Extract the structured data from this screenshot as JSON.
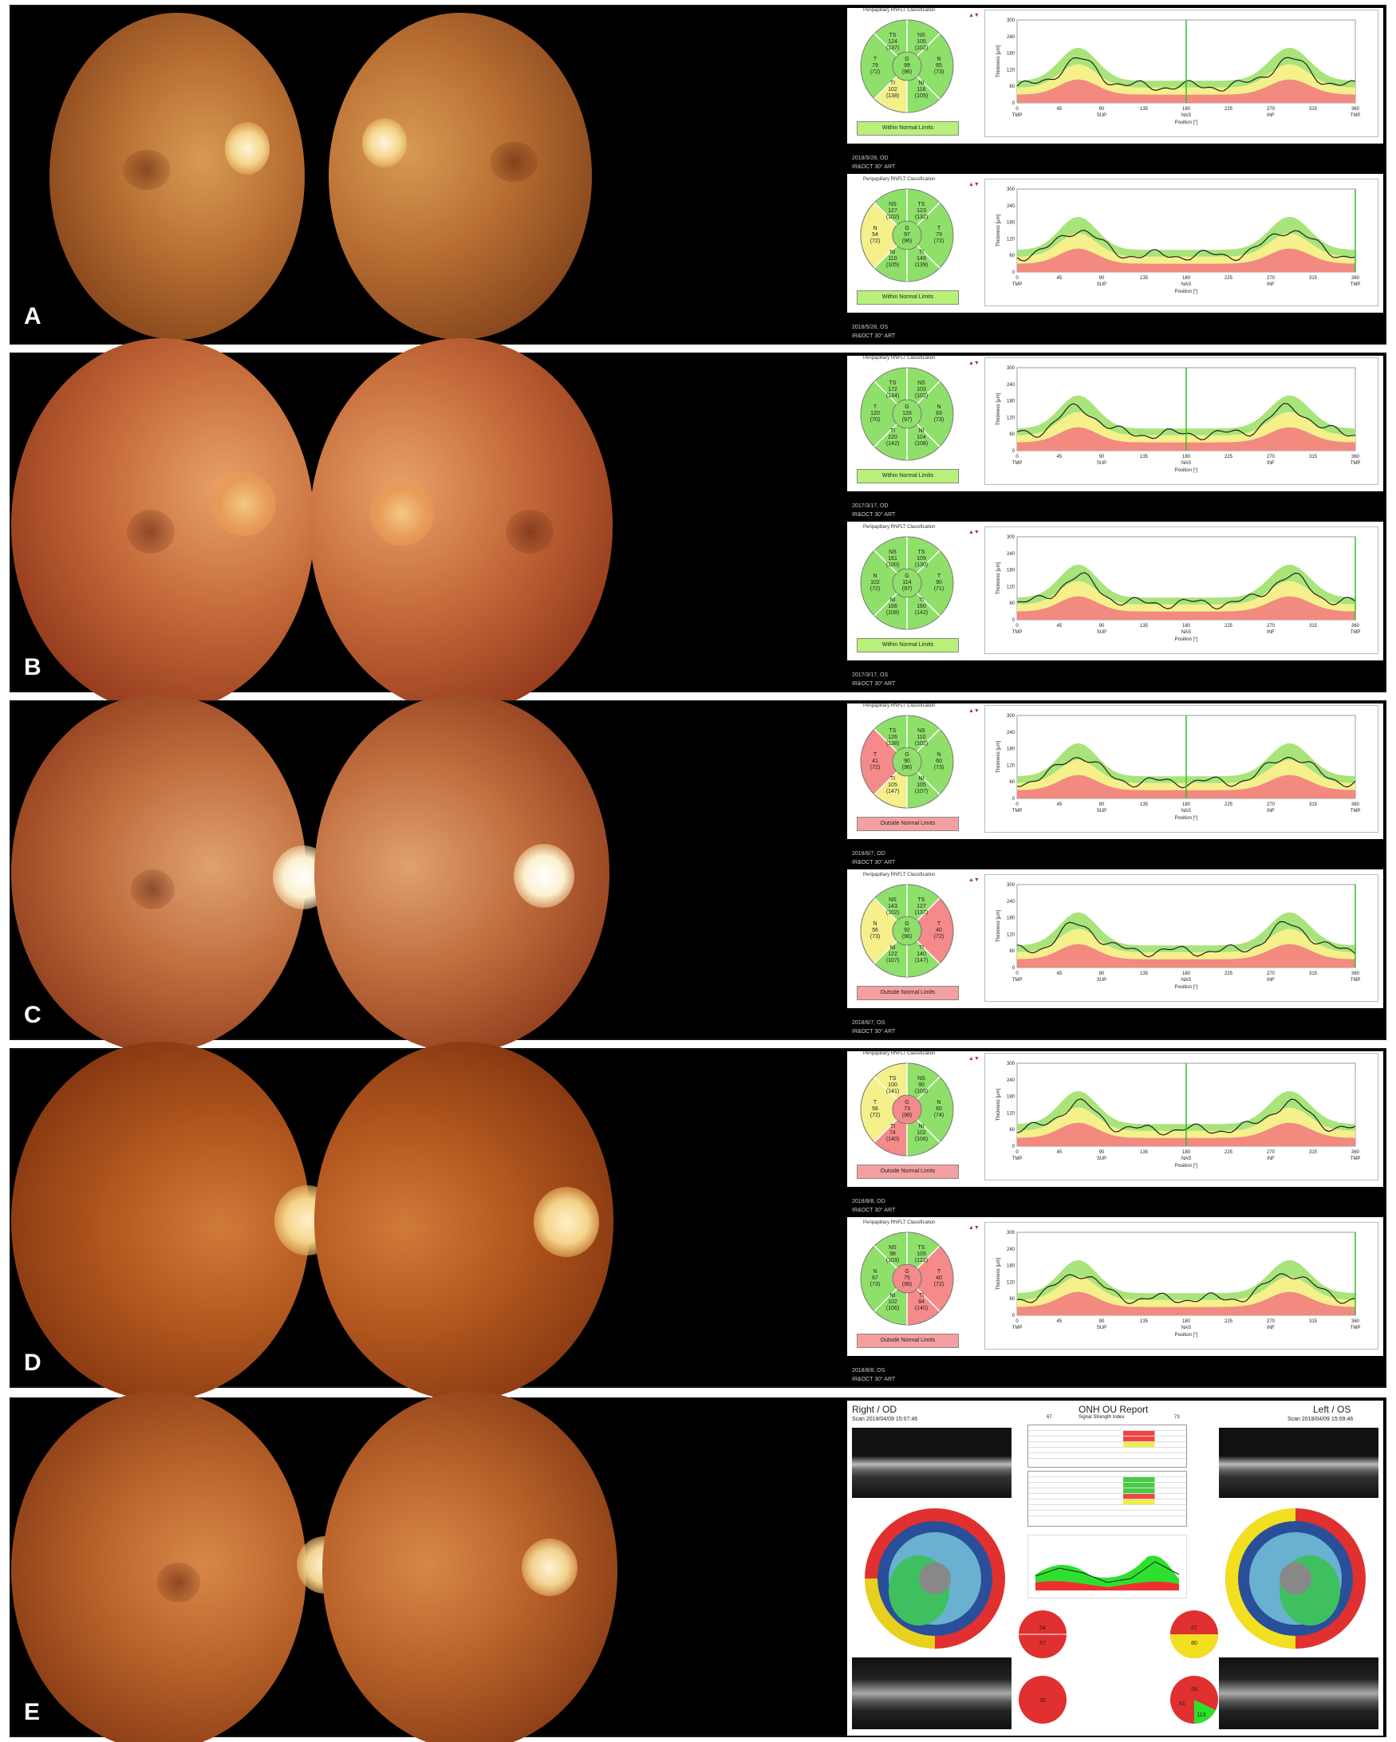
{
  "panels": [
    {
      "label": "A",
      "od": {
        "classification_title": "Peripapillary RNFLT Classification",
        "status": "Within Normal Limits",
        "status_color": "#b8f07a",
        "date_line": "2018/5/28, OD",
        "device_line": "IR&OCT 30° ART",
        "sectors": [
          {
            "name": "TS",
            "value": "124",
            "normal": "(137)"
          },
          {
            "name": "NS",
            "value": "105",
            "normal": "(102)"
          },
          {
            "name": "T",
            "value": "79",
            "normal": "(72)"
          },
          {
            "name": "G",
            "value": "99",
            "normal": "(96)"
          },
          {
            "name": "N",
            "value": "65",
            "normal": "(73)"
          },
          {
            "name": "TI",
            "value": "102",
            "normal": "(138)"
          },
          {
            "name": "NI",
            "value": "116",
            "normal": "(105)"
          }
        ]
      },
      "os": {
        "classification_title": "Peripapillary RNFLT Classification",
        "status": "Within Normal Limits",
        "status_color": "#b8f07a",
        "date_line": "2018/5/28, OS",
        "device_line": "IR&OCT 30° ART",
        "sectors": [
          {
            "name": "NS",
            "value": "127",
            "normal": "(102)"
          },
          {
            "name": "TS",
            "value": "123",
            "normal": "(132)"
          },
          {
            "name": "N",
            "value": "54",
            "normal": "(72)"
          },
          {
            "name": "G",
            "value": "97",
            "normal": "(96)"
          },
          {
            "name": "T",
            "value": "79",
            "normal": "(72)"
          },
          {
            "name": "NI",
            "value": "110",
            "normal": "(105)"
          },
          {
            "name": "TI",
            "value": "149",
            "normal": "(139)"
          }
        ]
      }
    },
    {
      "label": "B",
      "od": {
        "classification_title": "Peripapillary RNFLT Classification",
        "status": "Within Normal Limits",
        "status_color": "#b8f07a",
        "date_line": "2017/3/17, OD",
        "device_line": "IR&OCT 30° ART",
        "sectors": [
          {
            "name": "TS",
            "value": "172",
            "normal": "(134)"
          },
          {
            "name": "NS",
            "value": "103",
            "normal": "(102)"
          },
          {
            "name": "T",
            "value": "120",
            "normal": "(70)"
          },
          {
            "name": "G",
            "value": "126",
            "normal": "(97)"
          },
          {
            "name": "N",
            "value": "83",
            "normal": "(73)"
          },
          {
            "name": "TI",
            "value": "220",
            "normal": "(142)"
          },
          {
            "name": "NI",
            "value": "104",
            "normal": "(108)"
          }
        ]
      },
      "os": {
        "classification_title": "Peripapillary RNFLT Classification",
        "status": "Within Normal Limits",
        "status_color": "#b8f07a",
        "date_line": "2017/3/17, OS",
        "device_line": "IR&OCT 30° ART",
        "sectors": [
          {
            "name": "NS",
            "value": "161",
            "normal": "(100)"
          },
          {
            "name": "TS",
            "value": "109",
            "normal": "(130)"
          },
          {
            "name": "N",
            "value": "102",
            "normal": "(72)"
          },
          {
            "name": "G",
            "value": "114",
            "normal": "(97)"
          },
          {
            "name": "T",
            "value": "90",
            "normal": "(71)"
          },
          {
            "name": "NI",
            "value": "166",
            "normal": "(108)"
          },
          {
            "name": "TI",
            "value": "160",
            "normal": "(142)"
          }
        ]
      }
    },
    {
      "label": "C",
      "od": {
        "classification_title": "Peripapillary RNFLT Classification",
        "status": "Outside Normal Limits",
        "status_color": "#f5a0a0",
        "date_line": "2018/6/7, OD",
        "device_line": "IR&OCT 30° ART",
        "sectors": [
          {
            "name": "TS",
            "value": "126",
            "normal": "(138)"
          },
          {
            "name": "NS",
            "value": "110",
            "normal": "(102)"
          },
          {
            "name": "T",
            "value": "41",
            "normal": "(72)"
          },
          {
            "name": "G",
            "value": "90",
            "normal": "(96)"
          },
          {
            "name": "N",
            "value": "60",
            "normal": "(73)"
          },
          {
            "name": "TI",
            "value": "105",
            "normal": "(147)"
          },
          {
            "name": "NI",
            "value": "105",
            "normal": "(107)"
          }
        ]
      },
      "os": {
        "classification_title": "Peripapillary RNFLT Classification",
        "status": "Outside Normal Limits",
        "status_color": "#f5a0a0",
        "date_line": "2018/6/7, OS",
        "device_line": "IR&OCT 30° ART",
        "sectors": [
          {
            "name": "NS",
            "value": "143",
            "normal": "(102)"
          },
          {
            "name": "TS",
            "value": "127",
            "normal": "(137)"
          },
          {
            "name": "N",
            "value": "56",
            "normal": "(73)"
          },
          {
            "name": "G",
            "value": "92",
            "normal": "(96)"
          },
          {
            "name": "T",
            "value": "40",
            "normal": "(72)"
          },
          {
            "name": "NI",
            "value": "122",
            "normal": "(107)"
          },
          {
            "name": "TI",
            "value": "140",
            "normal": "(147)"
          }
        ]
      }
    },
    {
      "label": "D",
      "od": {
        "classification_title": "Peripapillary RNFLT Classification",
        "status": "Outside Normal Limits",
        "status_color": "#f5a0a0",
        "date_line": "2018/8/8, OD",
        "device_line": "IR&OCT 30° ART",
        "sectors": [
          {
            "name": "TS",
            "value": "100",
            "normal": "(141)"
          },
          {
            "name": "NS",
            "value": "90",
            "normal": "(103)"
          },
          {
            "name": "T",
            "value": "56",
            "normal": "(72)"
          },
          {
            "name": "G",
            "value": "73",
            "normal": "(98)"
          },
          {
            "name": "N",
            "value": "60",
            "normal": "(74)"
          },
          {
            "name": "TI",
            "value": "74",
            "normal": "(140)"
          },
          {
            "name": "NI",
            "value": "102",
            "normal": "(106)"
          }
        ]
      },
      "os": {
        "classification_title": "Peripapillary RNFLT Classification",
        "status": "Outside Normal Limits",
        "status_color": "#f5a0a0",
        "date_line": "2018/8/8, OS",
        "device_line": "IR&OCT 30° ART",
        "sectors": [
          {
            "name": "NS",
            "value": "98",
            "normal": "(103)"
          },
          {
            "name": "TS",
            "value": "105",
            "normal": "(122)"
          },
          {
            "name": "N",
            "value": "67",
            "normal": "(73)"
          },
          {
            "name": "G",
            "value": "75",
            "normal": "(98)"
          },
          {
            "name": "T",
            "value": "40",
            "normal": "(72)"
          },
          {
            "name": "NI",
            "value": "102",
            "normal": "(106)"
          },
          {
            "name": "TI",
            "value": "84",
            "normal": "(140)"
          }
        ]
      }
    }
  ],
  "graph_axis": {
    "y_label": "Thickness [µm]",
    "x_label": "Position [°]",
    "y_ticks": [
      "300",
      "240",
      "180",
      "120",
      "60",
      "0"
    ],
    "x_ticks": [
      "0",
      "45",
      "90",
      "135",
      "180",
      "225",
      "270",
      "315",
      "360"
    ],
    "sector_ticks": [
      "TMP",
      "SUP",
      "NAS",
      "INF",
      "TMP"
    ]
  },
  "panel_e": {
    "label": "E",
    "right_eye": "Right / OD",
    "left_eye": "Left / OS",
    "title": "ONH OU Report",
    "signal_strength": "Signal Strength Index",
    "scan_od": "Scan 2018/04/09 15:07:46",
    "scan_os": "Scan 2018/04/09 15:09:46",
    "ssi_od": "67",
    "ssi_os": "73",
    "rnfl_sector_od": [
      "54",
      "67",
      "30"
    ],
    "rnfl_sector_os": [
      "57",
      "80",
      "58",
      "81",
      "113"
    ]
  },
  "colors": {
    "normal_green": "#8fe06a",
    "borderline_yellow": "#f5f08a",
    "abnormal_red": "#f58a8a"
  }
}
